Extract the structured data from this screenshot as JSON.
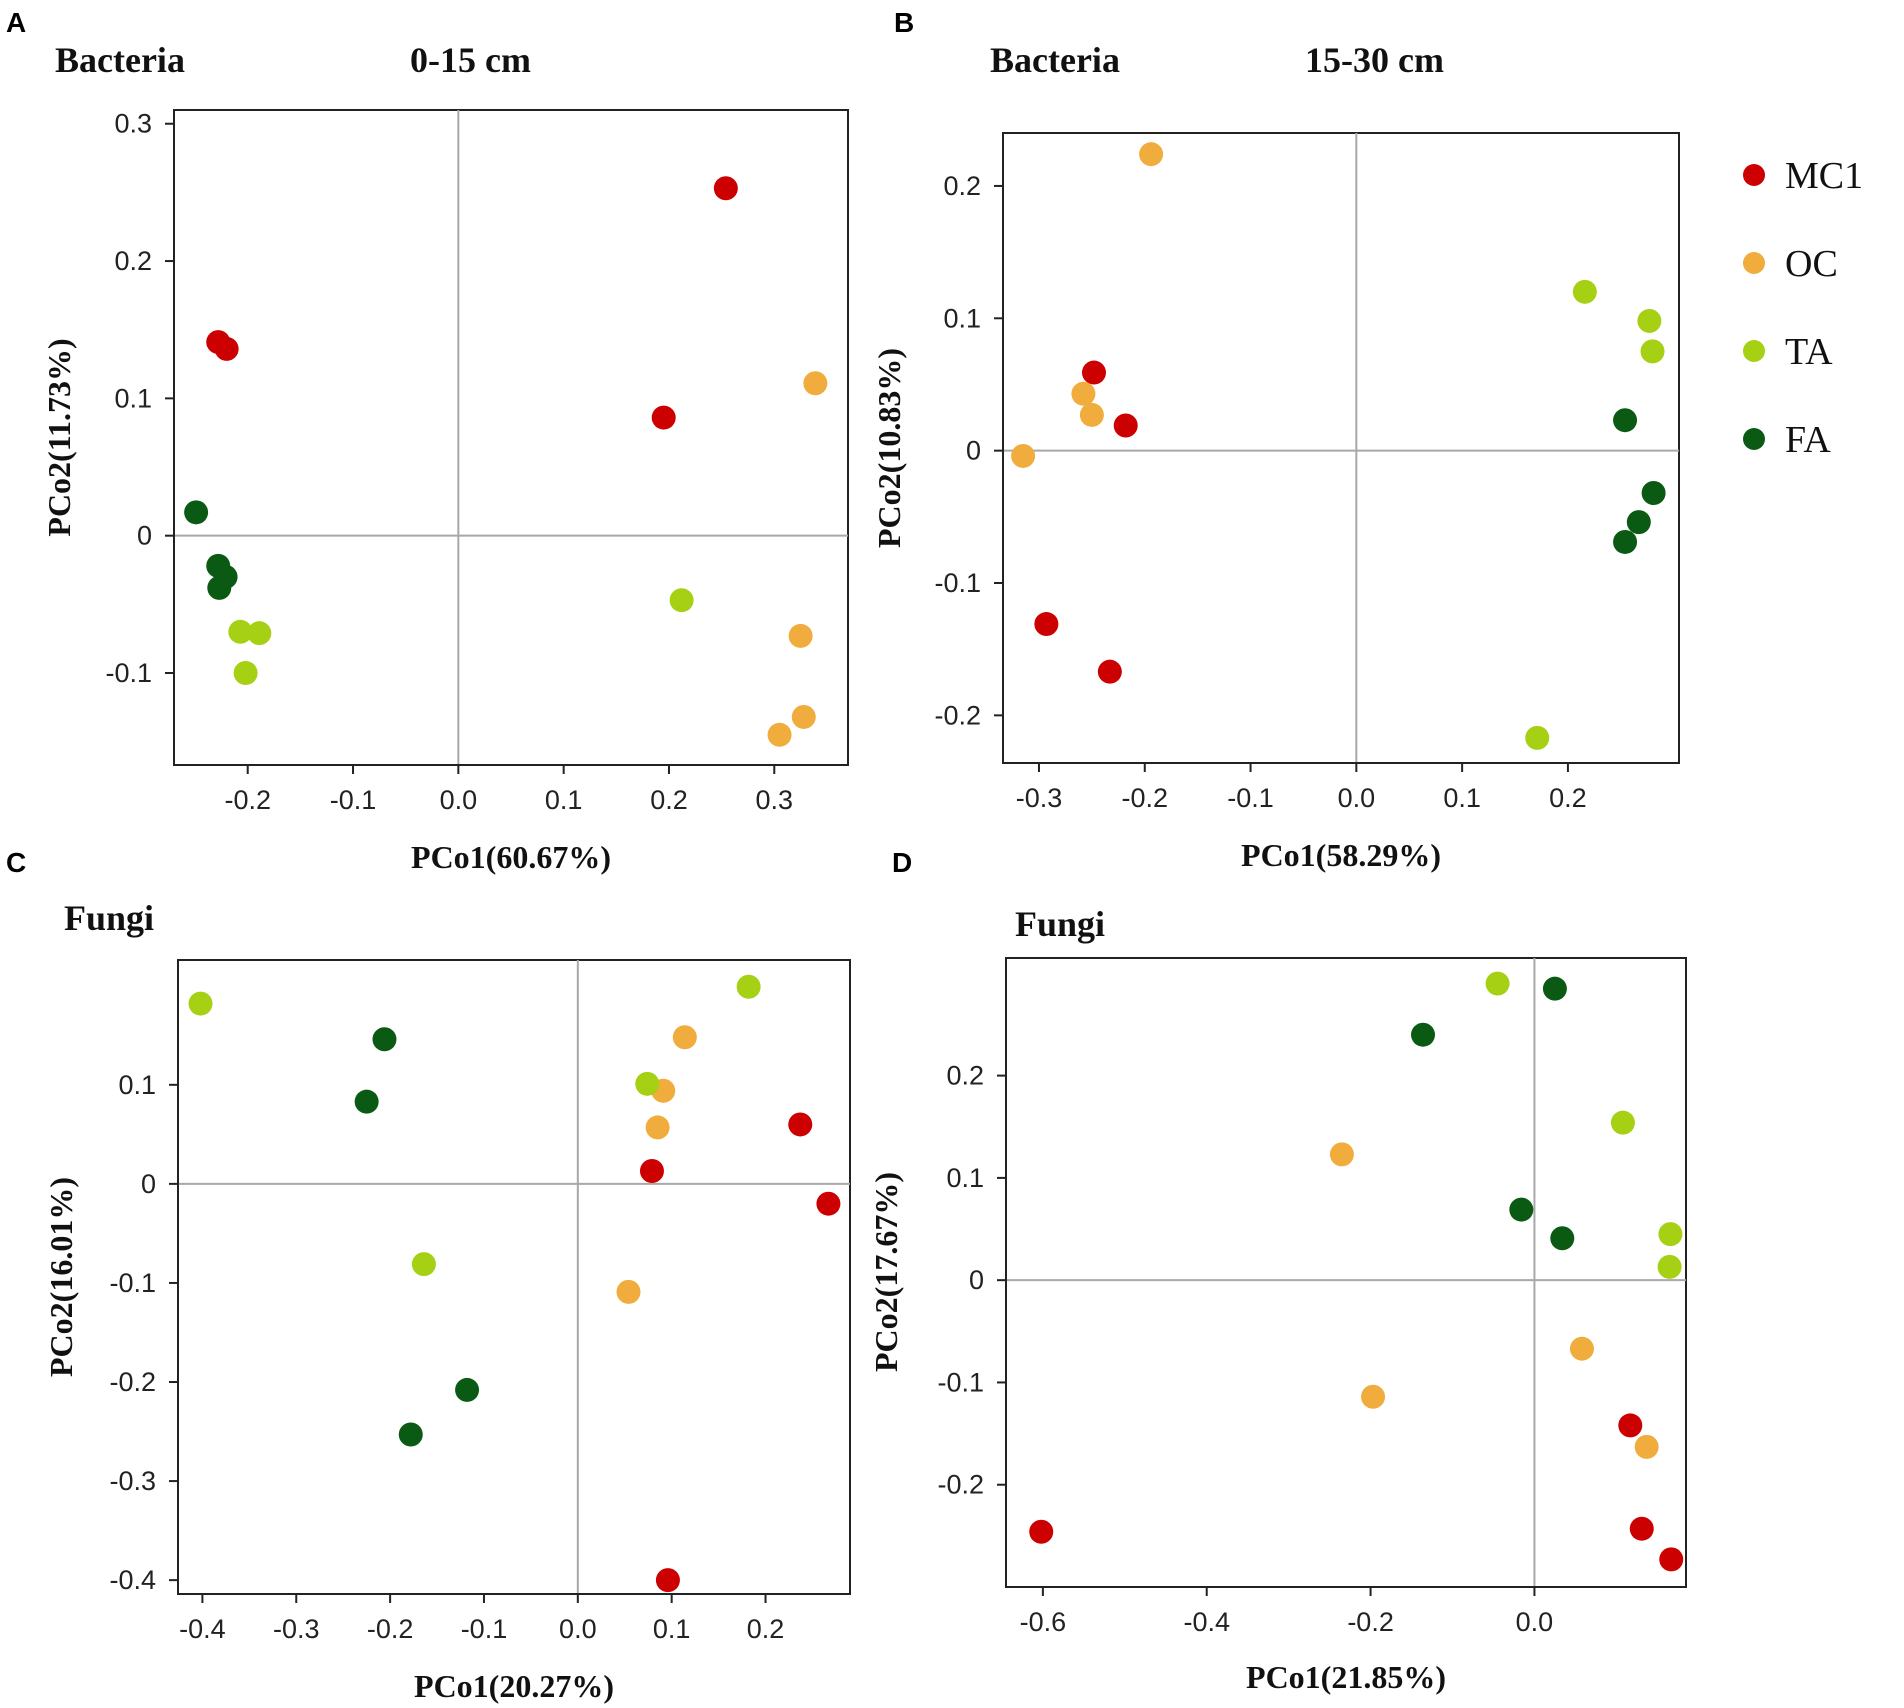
{
  "legend": [
    {
      "label": "MC1",
      "color": "#cc0000"
    },
    {
      "label": "OC",
      "color": "#f0ac3c"
    },
    {
      "label": "TA",
      "color": "#a6d014"
    },
    {
      "label": "FA",
      "color": "#0a5a14"
    }
  ],
  "chart_data": [
    {
      "panel": "A",
      "type": "scatter",
      "title": "Bacteria",
      "subtitle": "0-15 cm",
      "xlabel": "PCo1(60.67%)",
      "ylabel": "PCo2(11.73%)",
      "xlim": [
        -0.27,
        0.37
      ],
      "ylim": [
        -0.167,
        0.31
      ],
      "xticks": [
        -0.2,
        -0.1,
        0.0,
        0.1,
        0.2,
        0.3
      ],
      "xtick_labels": [
        "-0.2",
        "-0.1",
        "0.0",
        "0.1",
        "0.2",
        "0.3"
      ],
      "yticks": [
        -0.1,
        0,
        0.1,
        0.2,
        0.3
      ],
      "ytick_labels": [
        "-0.1",
        "0",
        "0.1",
        "0.2",
        "0.3"
      ],
      "series": [
        {
          "name": "MC1",
          "points": [
            [
              0.254,
              0.253
            ],
            [
              0.195,
              0.086
            ],
            [
              -0.228,
              0.141
            ],
            [
              -0.22,
              0.136
            ]
          ]
        },
        {
          "name": "OC",
          "points": [
            [
              0.339,
              0.111
            ],
            [
              0.325,
              -0.073
            ],
            [
              0.328,
              -0.132
            ],
            [
              0.305,
              -0.145
            ]
          ]
        },
        {
          "name": "TA",
          "points": [
            [
              0.212,
              -0.047
            ],
            [
              -0.207,
              -0.07
            ],
            [
              -0.189,
              -0.071
            ],
            [
              -0.202,
              -0.1
            ]
          ]
        },
        {
          "name": "FA",
          "points": [
            [
              -0.249,
              0.017
            ],
            [
              -0.228,
              -0.022
            ],
            [
              -0.221,
              -0.03
            ],
            [
              -0.227,
              -0.038
            ]
          ]
        }
      ]
    },
    {
      "panel": "B",
      "type": "scatter",
      "title": "Bacteria",
      "subtitle": "15-30 cm",
      "xlabel": "PCo1(58.29%)",
      "ylabel": "PCo2(10.83%)",
      "xlim": [
        -0.334,
        0.305
      ],
      "ylim": [
        -0.236,
        0.24
      ],
      "xticks": [
        -0.3,
        -0.2,
        -0.1,
        0.0,
        0.1,
        0.2
      ],
      "xtick_labels": [
        "-0.3",
        "-0.2",
        "-0.1",
        "0.0",
        "0.1",
        "0.2"
      ],
      "yticks": [
        -0.2,
        -0.1,
        0,
        0.1,
        0.2
      ],
      "ytick_labels": [
        "-0.2",
        "-0.1",
        "0",
        "0.1",
        "0.2"
      ],
      "series": [
        {
          "name": "MC1",
          "points": [
            [
              -0.248,
              0.059
            ],
            [
              -0.218,
              0.019
            ],
            [
              -0.293,
              -0.131
            ],
            [
              -0.233,
              -0.167
            ]
          ]
        },
        {
          "name": "OC",
          "points": [
            [
              -0.194,
              0.224
            ],
            [
              -0.258,
              0.043
            ],
            [
              -0.25,
              0.027
            ],
            [
              -0.315,
              -0.004
            ]
          ]
        },
        {
          "name": "TA",
          "points": [
            [
              0.216,
              0.12
            ],
            [
              0.277,
              0.098
            ],
            [
              0.28,
              0.075
            ],
            [
              0.171,
              -0.217
            ]
          ]
        },
        {
          "name": "FA",
          "points": [
            [
              0.254,
              0.023
            ],
            [
              0.281,
              -0.032
            ],
            [
              0.267,
              -0.054
            ],
            [
              0.254,
              -0.069
            ]
          ]
        }
      ]
    },
    {
      "panel": "C",
      "type": "scatter",
      "title": "Fungi",
      "xlabel": "PCo1(20.27%)",
      "ylabel": "PCo2(16.01%)",
      "xlim": [
        -0.426,
        0.29
      ],
      "ylim": [
        -0.414,
        0.226
      ],
      "xticks": [
        -0.4,
        -0.3,
        -0.2,
        -0.1,
        0.0,
        0.1,
        0.2
      ],
      "xtick_labels": [
        "-0.4",
        "-0.3",
        "-0.2",
        "-0.1",
        "0.0",
        "0.1",
        "0.2"
      ],
      "yticks": [
        -0.4,
        -0.3,
        -0.2,
        -0.1,
        0,
        0.1
      ],
      "ytick_labels": [
        "-0.4",
        "-0.3",
        "-0.2",
        "-0.1",
        "0",
        "0.1"
      ],
      "series": [
        {
          "name": "MC1",
          "points": [
            [
              0.237,
              0.06
            ],
            [
              0.079,
              0.013
            ],
            [
              0.267,
              -0.02
            ],
            [
              0.096,
              -0.4
            ]
          ]
        },
        {
          "name": "OC",
          "points": [
            [
              0.114,
              0.148
            ],
            [
              0.091,
              0.094
            ],
            [
              0.085,
              0.057
            ],
            [
              0.054,
              -0.109
            ]
          ]
        },
        {
          "name": "TA",
          "points": [
            [
              -0.402,
              0.182
            ],
            [
              0.182,
              0.199
            ],
            [
              0.074,
              0.101
            ],
            [
              -0.164,
              -0.081
            ]
          ]
        },
        {
          "name": "FA",
          "points": [
            [
              -0.206,
              0.146
            ],
            [
              -0.225,
              0.083
            ],
            [
              -0.118,
              -0.208
            ],
            [
              -0.178,
              -0.253
            ]
          ]
        }
      ]
    },
    {
      "panel": "D",
      "type": "scatter",
      "title": "Fungi",
      "xlabel": "PCo1(21.85%)",
      "ylabel": "PCo2(17.67%)",
      "xlim": [
        -0.645,
        0.185
      ],
      "ylim": [
        -0.3,
        0.315
      ],
      "xticks": [
        -0.6,
        -0.4,
        -0.2,
        0.0
      ],
      "xtick_labels": [
        "-0.6",
        "-0.4",
        "-0.2",
        "0.0"
      ],
      "yticks": [
        -0.2,
        -0.1,
        0,
        0.1,
        0.2
      ],
      "ytick_labels": [
        "-0.2",
        "-0.1",
        "0",
        "0.1",
        "0.2"
      ],
      "series": [
        {
          "name": "MC1",
          "points": [
            [
              0.117,
              -0.142
            ],
            [
              0.131,
              -0.243
            ],
            [
              0.167,
              -0.273
            ],
            [
              -0.602,
              -0.246
            ]
          ]
        },
        {
          "name": "OC",
          "points": [
            [
              -0.235,
              0.123
            ],
            [
              0.058,
              -0.067
            ],
            [
              -0.197,
              -0.114
            ],
            [
              0.137,
              -0.163
            ]
          ]
        },
        {
          "name": "TA",
          "points": [
            [
              -0.045,
              0.29
            ],
            [
              0.108,
              0.154
            ],
            [
              0.166,
              0.045
            ],
            [
              0.165,
              0.013
            ]
          ]
        },
        {
          "name": "FA",
          "points": [
            [
              0.025,
              0.285
            ],
            [
              -0.136,
              0.24
            ],
            [
              -0.016,
              0.069
            ],
            [
              0.034,
              0.041
            ]
          ]
        }
      ]
    }
  ]
}
